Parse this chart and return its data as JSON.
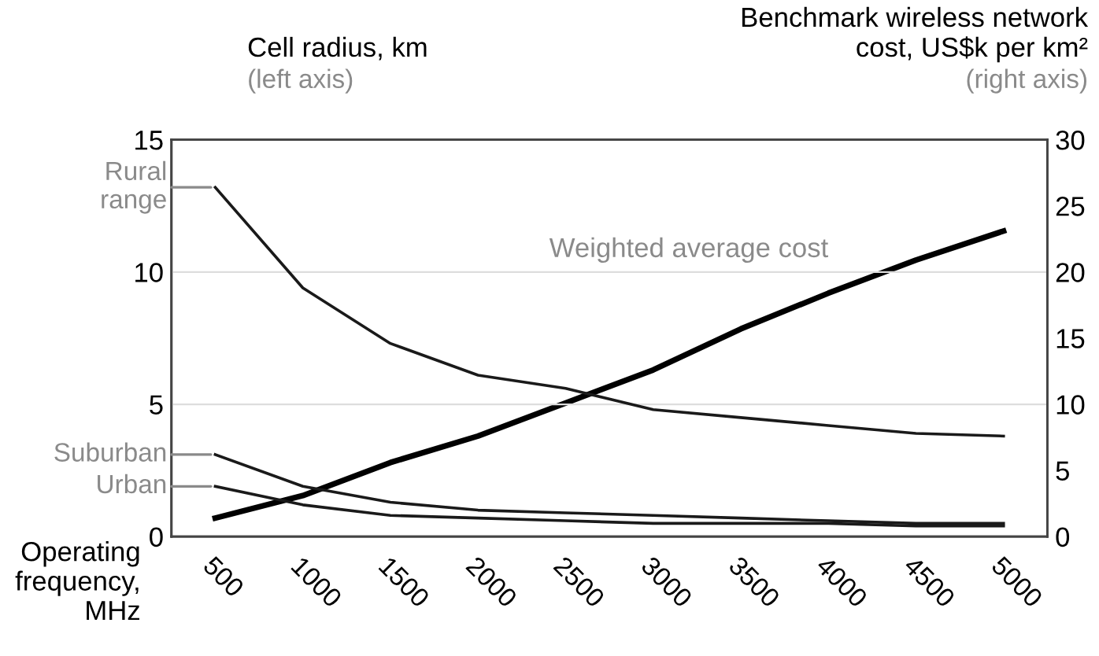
{
  "chart_data": {
    "type": "line",
    "x": [
      500,
      1000,
      1500,
      2000,
      2500,
      3000,
      3500,
      4000,
      4500,
      5000
    ],
    "xlabel": "Operating frequency, MHz",
    "ylabel": "Cell radius, km",
    "y2label": "Benchmark wireless network cost, US$k per km²",
    "annotations": [
      "(left axis)",
      "(right axis)"
    ],
    "series": [
      {
        "name": "Rural range",
        "color": "#1a1a1a",
        "values": [
          13.2,
          9.4,
          7.3,
          6.1,
          5.6,
          4.8,
          4.5,
          4.2,
          3.9,
          3.8
        ]
      },
      {
        "name": "Suburban",
        "color": "#1a1a1a",
        "values": [
          3.1,
          1.9,
          1.3,
          1.0,
          0.9,
          0.8,
          0.7,
          0.6,
          0.5,
          0.5
        ]
      },
      {
        "name": "Urban",
        "color": "#1a1a1a",
        "values": [
          1.9,
          1.2,
          0.8,
          0.7,
          0.6,
          0.5,
          0.5,
          0.5,
          0.4,
          0.4
        ]
      },
      {
        "name": "Weighted average cost",
        "color": "#000000",
        "axis": "y2",
        "values": [
          1.4,
          3.1,
          5.6,
          7.6,
          10.1,
          12.6,
          15.7,
          18.4,
          20.9,
          23.1
        ]
      }
    ],
    "xlim": [
      250,
      5250
    ],
    "xticks": [
      500,
      1000,
      1500,
      2000,
      2500,
      3000,
      3500,
      4000,
      4500,
      5000
    ],
    "ylim": [
      0,
      15
    ],
    "yticks": [
      0,
      5,
      10,
      15
    ],
    "y2lim": [
      0,
      30
    ],
    "y2ticks": [
      0,
      5,
      10,
      15,
      20,
      25,
      30
    ],
    "grid": "y",
    "legend": false,
    "marker": "none",
    "line_style": "solid"
  }
}
